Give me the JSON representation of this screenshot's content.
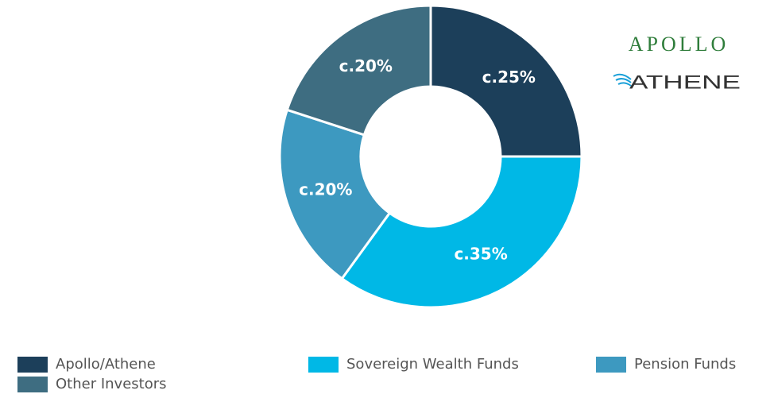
{
  "chart_data": {
    "type": "pie",
    "categories": [
      "Apollo/Athene",
      "Sovereign Wealth Funds",
      "Pension Funds",
      "Other Investors"
    ],
    "values": [
      25,
      35,
      20,
      20
    ],
    "value_labels": [
      "c.25%",
      "c.35%",
      "c.20%",
      "c.20%"
    ],
    "colors": [
      "#1c3f5a",
      "#00b8e6",
      "#3d99c0",
      "#3e6d81"
    ],
    "annotations": [
      "APOLLO",
      "ATHENE"
    ],
    "legend": "bottom"
  }
}
